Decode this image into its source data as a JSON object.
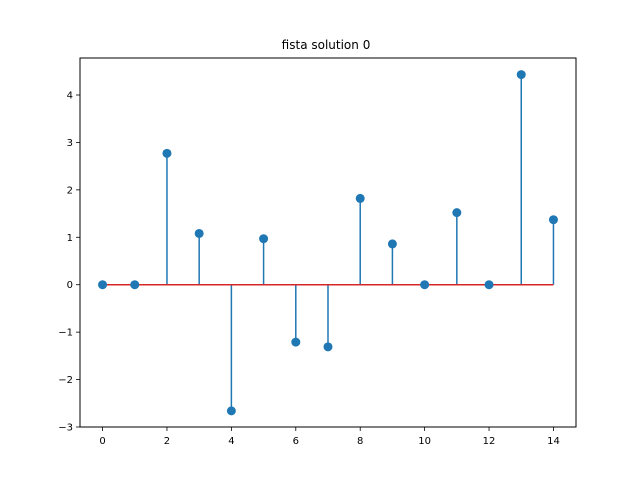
{
  "chart_data": {
    "type": "stem",
    "title": "fista solution 0",
    "xlabel": "",
    "ylabel": "",
    "x": [
      0,
      1,
      2,
      3,
      4,
      5,
      6,
      7,
      8,
      9,
      10,
      11,
      12,
      13,
      14
    ],
    "values": [
      0,
      0,
      2.77,
      1.08,
      -2.66,
      0.97,
      -1.21,
      -1.31,
      1.82,
      0.86,
      0,
      1.52,
      0,
      4.43,
      1.37
    ],
    "xlim": [
      -0.7,
      14.7
    ],
    "ylim": [
      -3.0,
      4.78
    ],
    "xticks": [
      0,
      2,
      4,
      6,
      8,
      10,
      12,
      14
    ],
    "xtick_labels": [
      "0",
      "2",
      "4",
      "6",
      "8",
      "10",
      "12",
      "14"
    ],
    "yticks": [
      -3,
      -2,
      -1,
      0,
      1,
      2,
      3,
      4
    ],
    "ytick_labels": [
      "−3",
      "−2",
      "−1",
      "0",
      "1",
      "2",
      "3",
      "4"
    ],
    "grid": false,
    "colors": {
      "stem": "#1f77b4",
      "marker": "#1f77b4",
      "baseline": "#d62728"
    }
  }
}
